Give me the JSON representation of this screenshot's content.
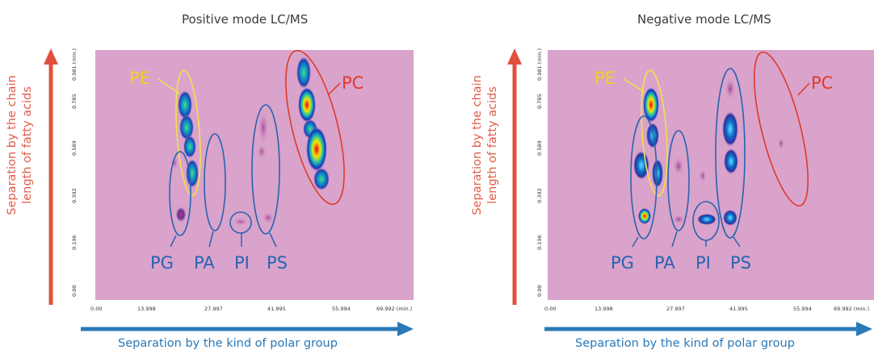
{
  "panels": [
    {
      "title": "Positive mode LC/MS",
      "ylabel_line1": "Separation by the chain",
      "ylabel_line2": "length of fatty acids",
      "xlabel": "Separation by the kind of polar group",
      "x_ticks": [
        "0.00",
        "13.998",
        "27.997",
        "41.995",
        "55.994",
        "69.992 (min.)"
      ],
      "y_ticks": [
        "0.00",
        "0.196",
        "0.392",
        "0.589",
        "0.785",
        "0.981 (min.)"
      ],
      "classes": {
        "PE": "PE",
        "PC": "PC",
        "PG": "PG",
        "PA": "PA",
        "PI": "PI",
        "PS": "PS"
      }
    },
    {
      "title": "Negative mode LC/MS",
      "ylabel_line1": "Separation by the chain",
      "ylabel_line2": "length of fatty acids",
      "xlabel": "Separation by the kind of polar group",
      "x_ticks": [
        "0.00",
        "13.998",
        "27.997",
        "41.995",
        "55.994",
        "69.992 (min.)"
      ],
      "y_ticks": [
        "0.00",
        "0.196",
        "0.392",
        "0.589",
        "0.785",
        "0.981 (min.)"
      ],
      "classes": {
        "PE": "PE",
        "PC": "PC",
        "PG": "PG",
        "PA": "PA",
        "PI": "PI",
        "PS": "PS"
      }
    }
  ],
  "colors": {
    "background": "#d9a3cb",
    "arrow_vertical": "#e0503c",
    "arrow_horizontal": "#2a79b8",
    "pe_outline": "#f2e14a",
    "pc_outline": "#e03a2a",
    "other_outline": "#2a63b0",
    "pe_label": "#f2d21a",
    "pc_label": "#e03a2a",
    "other_label": "#2a63b0"
  }
}
